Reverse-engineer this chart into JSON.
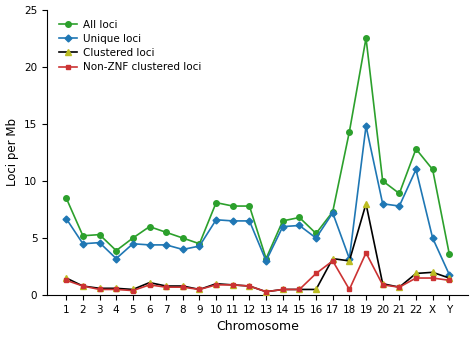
{
  "chromosomes": [
    "1",
    "2",
    "3",
    "4",
    "5",
    "6",
    "7",
    "8",
    "9",
    "10",
    "11",
    "12",
    "13",
    "14",
    "15",
    "16",
    "17",
    "18",
    "19",
    "20",
    "21",
    "22",
    "X",
    "Y"
  ],
  "all_loci": [
    8.5,
    5.2,
    5.3,
    3.9,
    5.0,
    6.0,
    5.5,
    5.0,
    4.5,
    8.1,
    7.8,
    7.8,
    3.2,
    6.5,
    6.8,
    5.4,
    7.3,
    14.3,
    22.5,
    10.0,
    8.9,
    12.8,
    11.0,
    3.6
  ],
  "unique_loci": [
    6.7,
    4.5,
    4.6,
    3.2,
    4.5,
    4.4,
    4.4,
    4.0,
    4.3,
    6.6,
    6.5,
    6.5,
    3.0,
    6.0,
    6.1,
    5.0,
    7.2,
    3.2,
    14.8,
    8.0,
    7.8,
    11.0,
    5.0,
    1.8
  ],
  "clustered_loci": [
    1.5,
    0.8,
    0.6,
    0.6,
    0.5,
    1.1,
    0.8,
    0.8,
    0.5,
    1.0,
    0.9,
    0.8,
    0.3,
    0.5,
    0.5,
    0.5,
    3.2,
    3.0,
    8.0,
    1.0,
    0.7,
    1.9,
    2.0,
    1.5
  ],
  "nonznf_loci": [
    1.3,
    0.8,
    0.5,
    0.5,
    0.4,
    0.9,
    0.7,
    0.7,
    0.5,
    0.9,
    0.9,
    0.8,
    0.3,
    0.5,
    0.5,
    1.9,
    3.0,
    0.5,
    3.7,
    0.9,
    0.7,
    1.5,
    1.5,
    1.3
  ],
  "all_color": "#2ca02c",
  "unique_color": "#1f77b4",
  "clustered_color": "#000000",
  "clustered_marker_color": "#bcbd22",
  "nonznf_color": "#cc3333",
  "ylabel": "Loci per Mb",
  "xlabel": "Chromosome",
  "ylim": [
    0,
    25
  ],
  "yticks": [
    0,
    5,
    10,
    15,
    20,
    25
  ],
  "legend_labels": [
    "All loci",
    "Unique loci",
    "Clustered loci",
    "Non-ZNF clustered loci"
  ],
  "legend_fontsize": 7.5,
  "tick_fontsize": 7.5,
  "xlabel_fontsize": 9,
  "ylabel_fontsize": 8.5,
  "linewidth": 1.2,
  "markersize": 4
}
